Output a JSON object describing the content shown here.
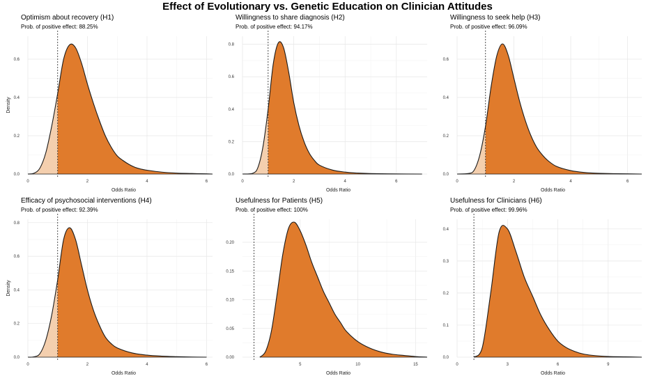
{
  "figure": {
    "title": "Effect of Evolutionary vs. Genetic Education on Clinician Attitudes"
  },
  "colors": {
    "positive_fill": "#e07b2c",
    "negative_fill": "#f4cfae",
    "curve": "#1a1a1a"
  },
  "chart_data": [
    {
      "type": "area",
      "title": "Optimism about recovery (H1)",
      "subtitle": "Prob. of positive effect: 88.25%",
      "xlabel": "Odds Ratio",
      "ylabel": "Density",
      "xlim": [
        0,
        6.2
      ],
      "ylim": [
        0,
        0.72
      ],
      "xticks": [
        0,
        2,
        4,
        6
      ],
      "yticks": [
        0.0,
        0.2,
        0.4,
        0.6
      ],
      "yticklabels": [
        "0.0",
        "0.2",
        "0.4",
        "0.6"
      ],
      "reference_line_x": 1.0,
      "density": {
        "x": [
          0,
          0.2,
          0.4,
          0.6,
          0.8,
          1.0,
          1.2,
          1.4,
          1.6,
          1.8,
          2.0,
          2.2,
          2.4,
          2.6,
          2.8,
          3.0,
          3.2,
          3.4,
          3.6,
          3.8,
          4.0,
          4.5,
          5.0,
          5.5,
          6.0,
          6.2
        ],
        "y": [
          0.0,
          0.004,
          0.03,
          0.11,
          0.25,
          0.42,
          0.6,
          0.675,
          0.66,
          0.58,
          0.47,
          0.37,
          0.28,
          0.2,
          0.14,
          0.095,
          0.07,
          0.05,
          0.035,
          0.026,
          0.02,
          0.01,
          0.005,
          0.003,
          0.001,
          0.0
        ]
      }
    },
    {
      "type": "area",
      "title": "Willingness to share diagnosis (H2)",
      "subtitle": "Prob. of positive effect: 94.17%",
      "xlabel": "Odds Ratio",
      "ylabel": "",
      "xlim": [
        0,
        7.2
      ],
      "ylim": [
        0,
        0.85
      ],
      "xticks": [
        0,
        2,
        4,
        6
      ],
      "yticks": [
        0.0,
        0.2,
        0.4,
        0.6,
        0.8
      ],
      "yticklabels": [
        "0.0",
        "0.2",
        "0.4",
        "0.6",
        "0.8"
      ],
      "reference_line_x": 1.0,
      "density": {
        "x": [
          0,
          0.4,
          0.6,
          0.8,
          1.0,
          1.2,
          1.4,
          1.6,
          1.8,
          2.0,
          2.2,
          2.4,
          2.6,
          2.8,
          3.0,
          3.5,
          4.0,
          4.5,
          5.0,
          6.0,
          7.0
        ],
        "y": [
          0.0,
          0.005,
          0.04,
          0.17,
          0.4,
          0.68,
          0.81,
          0.78,
          0.63,
          0.44,
          0.3,
          0.2,
          0.13,
          0.085,
          0.055,
          0.025,
          0.012,
          0.006,
          0.003,
          0.001,
          0.0
        ]
      }
    },
    {
      "type": "area",
      "title": "Willingness to seek help (H3)",
      "subtitle": "Prob. of positive effect: 96.09%",
      "xlabel": "Odds Ratio",
      "ylabel": "",
      "xlim": [
        0,
        6.5
      ],
      "ylim": [
        0,
        0.72
      ],
      "xticks": [
        0,
        2,
        4,
        6
      ],
      "yticks": [
        0.0,
        0.2,
        0.4,
        0.6
      ],
      "yticklabels": [
        "0.0",
        "0.2",
        "0.4",
        "0.6"
      ],
      "reference_line_x": 1.0,
      "density": {
        "x": [
          0,
          0.4,
          0.6,
          0.8,
          1.0,
          1.2,
          1.4,
          1.6,
          1.8,
          2.0,
          2.2,
          2.4,
          2.6,
          2.8,
          3.0,
          3.2,
          3.5,
          4.0,
          4.5,
          5.0,
          6.0,
          6.5
        ],
        "y": [
          0.0,
          0.003,
          0.02,
          0.1,
          0.25,
          0.46,
          0.62,
          0.68,
          0.62,
          0.5,
          0.38,
          0.28,
          0.2,
          0.14,
          0.1,
          0.07,
          0.04,
          0.018,
          0.008,
          0.004,
          0.001,
          0.0
        ]
      }
    },
    {
      "type": "area",
      "title": "Efficacy of psychosocial interventions (H4)",
      "subtitle": "Prob. of positive effect: 92.39%",
      "xlabel": "Odds Ratio",
      "ylabel": "Density",
      "xlim": [
        0,
        6.2
      ],
      "ylim": [
        0,
        0.82
      ],
      "xticks": [
        0,
        2,
        4,
        6
      ],
      "yticks": [
        0.0,
        0.2,
        0.4,
        0.6,
        0.8
      ],
      "yticklabels": [
        "0.0",
        "0.2",
        "0.4",
        "0.6",
        "0.8"
      ],
      "reference_line_x": 1.0,
      "density": {
        "x": [
          0,
          0.2,
          0.4,
          0.6,
          0.8,
          1.0,
          1.2,
          1.4,
          1.6,
          1.8,
          2.0,
          2.2,
          2.4,
          2.6,
          2.8,
          3.0,
          3.5,
          4.0,
          4.5,
          5.0,
          5.5,
          6.0
        ],
        "y": [
          0.0,
          0.002,
          0.02,
          0.1,
          0.25,
          0.46,
          0.7,
          0.77,
          0.7,
          0.55,
          0.4,
          0.28,
          0.19,
          0.12,
          0.08,
          0.055,
          0.025,
          0.012,
          0.006,
          0.003,
          0.001,
          0.0
        ]
      }
    },
    {
      "type": "area",
      "title": "Usefulness for Patients (H5)",
      "subtitle": "Prob. of positive effect: 100%",
      "xlabel": "Odds Ratio",
      "ylabel": "",
      "xlim": [
        0,
        16
      ],
      "ylim": [
        0,
        0.24
      ],
      "xticks": [
        5,
        10,
        15
      ],
      "yticks": [
        0.0,
        0.05,
        0.1,
        0.15,
        0.2
      ],
      "yticklabels": [
        "0.00",
        "0.05",
        "0.10",
        "0.15",
        "0.20"
      ],
      "reference_line_x": 1.0,
      "density": {
        "x": [
          1.5,
          2,
          2.5,
          3,
          3.5,
          4,
          4.5,
          5,
          5.5,
          6,
          6.5,
          7,
          7.5,
          8,
          8.5,
          9,
          10,
          11,
          12,
          13,
          14,
          15,
          16
        ],
        "y": [
          0.0,
          0.01,
          0.045,
          0.11,
          0.18,
          0.225,
          0.235,
          0.22,
          0.195,
          0.165,
          0.14,
          0.115,
          0.095,
          0.075,
          0.06,
          0.045,
          0.027,
          0.016,
          0.009,
          0.005,
          0.003,
          0.001,
          0.0
        ]
      }
    },
    {
      "type": "area",
      "title": "Usefulness for Clinicians (H6)",
      "subtitle": "Prob. of positive effect: 99.96%",
      "xlabel": "Odds Ratio",
      "ylabel": "",
      "xlim": [
        0,
        11
      ],
      "ylim": [
        0,
        0.43
      ],
      "xticks": [
        0,
        3,
        6,
        9
      ],
      "yticks": [
        0.0,
        0.1,
        0.2,
        0.3,
        0.4
      ],
      "yticklabels": [
        "0.0",
        "0.1",
        "0.2",
        "0.3",
        "0.4"
      ],
      "reference_line_x": 1.0,
      "density": {
        "x": [
          1.0,
          1.5,
          2.0,
          2.5,
          3.0,
          3.5,
          4.0,
          4.5,
          5.0,
          5.5,
          6.0,
          6.5,
          7.0,
          7.5,
          8.0,
          9.0,
          10.0,
          11.0
        ],
        "y": [
          0.0,
          0.03,
          0.2,
          0.39,
          0.4,
          0.33,
          0.25,
          0.19,
          0.13,
          0.085,
          0.05,
          0.03,
          0.018,
          0.01,
          0.006,
          0.002,
          0.001,
          0.0
        ]
      }
    }
  ]
}
